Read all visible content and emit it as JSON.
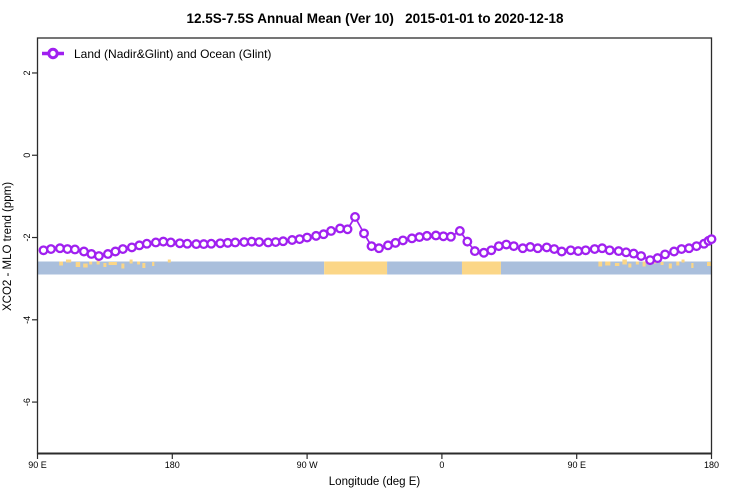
{
  "chart_data": {
    "type": "line",
    "title": "12.5S-7.5S Annual Mean (Ver 10)   2015-01-01 to 2020-12-18",
    "xlabel": "Longitude (deg E)",
    "ylabel": "XCO2 - MLO trend (ppm)",
    "legend": [
      {
        "label": "Land (Nadir&Glint) and Ocean (Glint)",
        "color": "#A020F0",
        "marker": "open-circle"
      }
    ],
    "legend_position": "top-left",
    "grid": false,
    "xlim": [
      90,
      540
    ],
    "ylim": [
      -7.25,
      2.85
    ],
    "x_ticks": [
      {
        "value": 90,
        "label": "90 E"
      },
      {
        "value": 180,
        "label": "180"
      },
      {
        "value": 270,
        "label": "90 W"
      },
      {
        "value": 360,
        "label": "0"
      },
      {
        "value": 450,
        "label": "90 E"
      },
      {
        "value": 540,
        "label": "180"
      }
    ],
    "y_ticks": [
      {
        "value": 2,
        "label": "2"
      },
      {
        "value": 0,
        "label": "0"
      },
      {
        "value": -2,
        "label": "-2"
      },
      {
        "value": -4,
        "label": "-4"
      },
      {
        "value": -6,
        "label": "-6"
      }
    ],
    "series": [
      {
        "name": "Land (Nadir&Glint) and Ocean (Glint)",
        "color": "#A020F0",
        "marker": "open-circle",
        "points": [
          [
            94,
            -2.31
          ],
          [
            99,
            -2.28
          ],
          [
            105,
            -2.26
          ],
          [
            110,
            -2.28
          ],
          [
            115,
            -2.29
          ],
          [
            121,
            -2.34
          ],
          [
            126,
            -2.4
          ],
          [
            131,
            -2.45
          ],
          [
            137,
            -2.4
          ],
          [
            142,
            -2.34
          ],
          [
            147,
            -2.28
          ],
          [
            153,
            -2.24
          ],
          [
            158,
            -2.19
          ],
          [
            163,
            -2.15
          ],
          [
            169,
            -2.12
          ],
          [
            174,
            -2.1
          ],
          [
            179,
            -2.12
          ],
          [
            185,
            -2.14
          ],
          [
            190,
            -2.15
          ],
          [
            196,
            -2.16
          ],
          [
            201,
            -2.16
          ],
          [
            206,
            -2.15
          ],
          [
            212,
            -2.14
          ],
          [
            217,
            -2.13
          ],
          [
            222,
            -2.12
          ],
          [
            228,
            -2.11
          ],
          [
            233,
            -2.1
          ],
          [
            238,
            -2.11
          ],
          [
            244,
            -2.12
          ],
          [
            249,
            -2.11
          ],
          [
            254,
            -2.09
          ],
          [
            260,
            -2.06
          ],
          [
            265,
            -2.04
          ],
          [
            270,
            -2.0
          ],
          [
            276,
            -1.96
          ],
          [
            281,
            -1.92
          ],
          [
            286,
            -1.84
          ],
          [
            292,
            -1.78
          ],
          [
            297,
            -1.8
          ],
          [
            302,
            -1.5
          ],
          [
            308,
            -1.9
          ],
          [
            313,
            -2.21
          ],
          [
            318,
            -2.26
          ],
          [
            324,
            -2.19
          ],
          [
            329,
            -2.13
          ],
          [
            334,
            -2.07
          ],
          [
            340,
            -2.02
          ],
          [
            345,
            -1.99
          ],
          [
            350,
            -1.96
          ],
          [
            356,
            -1.95
          ],
          [
            361,
            -1.97
          ],
          [
            366,
            -1.98
          ],
          [
            372,
            -1.84
          ],
          [
            377,
            -2.1
          ],
          [
            382,
            -2.33
          ],
          [
            388,
            -2.37
          ],
          [
            393,
            -2.31
          ],
          [
            398,
            -2.21
          ],
          [
            403,
            -2.17
          ],
          [
            408,
            -2.21
          ],
          [
            414,
            -2.26
          ],
          [
            419,
            -2.23
          ],
          [
            424,
            -2.26
          ],
          [
            430,
            -2.24
          ],
          [
            435,
            -2.28
          ],
          [
            440,
            -2.34
          ],
          [
            446,
            -2.31
          ],
          [
            451,
            -2.33
          ],
          [
            456,
            -2.31
          ],
          [
            462,
            -2.28
          ],
          [
            467,
            -2.26
          ],
          [
            472,
            -2.31
          ],
          [
            478,
            -2.33
          ],
          [
            483,
            -2.36
          ],
          [
            488,
            -2.39
          ],
          [
            493,
            -2.45
          ],
          [
            499,
            -2.55
          ],
          [
            504,
            -2.5
          ],
          [
            509,
            -2.41
          ],
          [
            515,
            -2.34
          ],
          [
            520,
            -2.28
          ],
          [
            525,
            -2.26
          ],
          [
            530,
            -2.21
          ],
          [
            535,
            -2.15
          ],
          [
            538,
            -2.08
          ],
          [
            540,
            -2.04
          ]
        ]
      }
    ],
    "map_band": {
      "description": "ocean/land strip for 12.5S-7.5S latitude band",
      "value_range": [
        -2.6,
        -2.92
      ],
      "ocean_color": "#aabfdc",
      "land_color": "#fbd687",
      "segments": [
        {
          "from": 90,
          "to": 281.4,
          "type": "ocean"
        },
        {
          "from": 281.4,
          "to": 323.4,
          "type": "land"
        },
        {
          "from": 323.4,
          "to": 373.4,
          "type": "ocean"
        },
        {
          "from": 373.4,
          "to": 399.4,
          "type": "land"
        },
        {
          "from": 399.4,
          "to": 540,
          "type": "ocean"
        }
      ],
      "islands": [
        [
          104.5,
          107
        ],
        [
          109,
          112.5
        ],
        [
          115.5,
          118.5
        ],
        [
          120.5,
          123.5
        ],
        [
          124.5,
          126.5
        ],
        [
          129.5,
          131.5
        ],
        [
          134,
          136
        ],
        [
          137.5,
          143
        ],
        [
          146,
          148
        ],
        [
          151.5,
          153.5
        ],
        [
          156.5,
          158.5
        ],
        [
          160,
          162
        ],
        [
          166.5,
          168
        ],
        [
          177,
          179
        ],
        [
          464.5,
          467
        ],
        [
          469,
          472.5
        ],
        [
          475.5,
          478.5
        ],
        [
          480.5,
          483.5
        ],
        [
          484.5,
          486.5
        ],
        [
          489.5,
          491.5
        ],
        [
          494,
          496
        ],
        [
          497.5,
          503
        ],
        [
          506,
          508
        ],
        [
          511.5,
          513.5
        ],
        [
          516.5,
          518.5
        ],
        [
          520,
          522
        ],
        [
          526.5,
          528
        ],
        [
          537,
          540
        ]
      ]
    },
    "axis_color": "#2b2b2b"
  }
}
